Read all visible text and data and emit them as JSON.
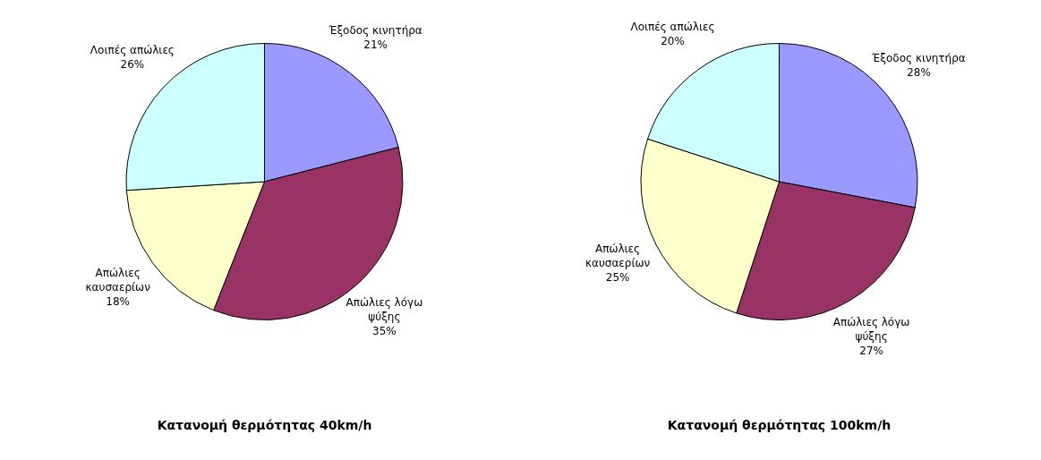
{
  "chart_data": [
    {
      "type": "pie",
      "title": "Κατανομή θερμότητας 40km/h",
      "categories": [
        "Έξοδος κινητήρα",
        "Απώλιες λόγω ψύξης",
        "Απώλιες καυσαερίων",
        "Λοιπές απώλιες"
      ],
      "values": [
        21,
        35,
        18,
        26
      ],
      "value_labels": [
        "21%",
        "35%",
        "18%",
        "26%"
      ],
      "colors": [
        "#9999ff",
        "#993366",
        "#ffffcc",
        "#ccffff"
      ],
      "legend": false
    },
    {
      "type": "pie",
      "title": "Κατανομή θερμότητας 100km/h",
      "categories": [
        "Έξοδος κινητήρα",
        "Απώλιες λόγω ψύξης",
        "Απώλιες καυσαερίων",
        "Λοιπές απώλιες"
      ],
      "values": [
        28,
        27,
        25,
        20
      ],
      "value_labels": [
        "28%",
        "27%",
        "25%",
        "20%"
      ],
      "colors": [
        "#9999ff",
        "#993366",
        "#ffffcc",
        "#ccffff"
      ],
      "legend": false
    }
  ]
}
